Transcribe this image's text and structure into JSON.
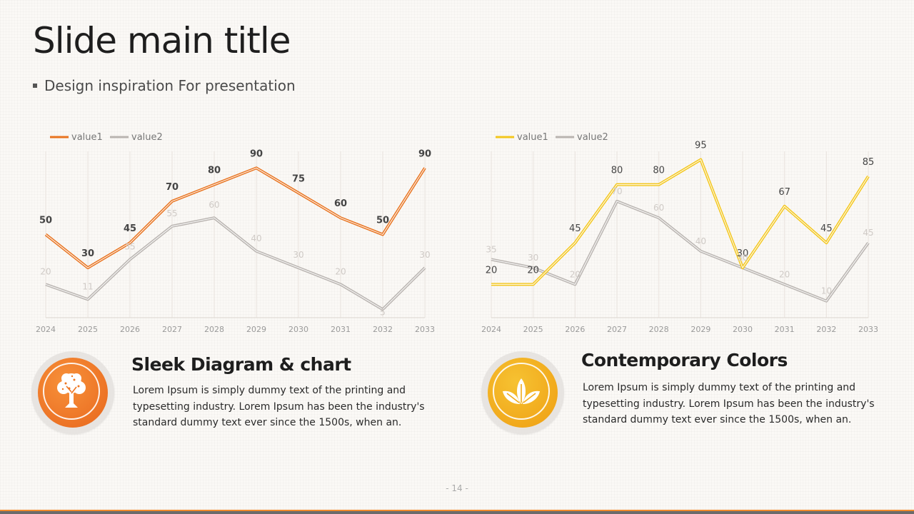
{
  "slide": {
    "title": "Slide main title",
    "subtitle": "Design inspiration For presentation",
    "page_number": "- 14 -"
  },
  "features": [
    {
      "heading": "Sleek Diagram & chart",
      "body": "Lorem Ipsum is simply dummy text of the printing and typesetting industry. Lorem Ipsum has been the industry's standard dummy text ever since the 1500s, when an.",
      "icon": "tree-icon",
      "color": "#ed6f1f"
    },
    {
      "heading": "Contemporary Colors",
      "body": "Lorem Ipsum is simply dummy text of the printing and typesetting industry. Lorem Ipsum has been the industry's standard dummy text ever since the 1500s, when an.",
      "icon": "leaves-icon",
      "color": "#f2ab1a"
    }
  ],
  "chart_data": [
    {
      "type": "line",
      "categories": [
        "2024",
        "2025",
        "2026",
        "2027",
        "2028",
        "2029",
        "2030",
        "2031",
        "2032",
        "2033"
      ],
      "series": [
        {
          "name": "value1",
          "values": [
            50,
            30,
            45,
            70,
            80,
            90,
            75,
            60,
            50,
            90
          ],
          "color": "#e8731f",
          "label_color": "#444444"
        },
        {
          "name": "value2",
          "values": [
            20,
            11,
            35,
            55,
            60,
            40,
            30,
            20,
            5,
            30
          ],
          "color": "#b9b4b0",
          "label_color": "#cfcac6"
        }
      ],
      "ylim": [
        0,
        100
      ],
      "legend": "top-left",
      "grid": "vertical"
    },
    {
      "type": "line",
      "categories": [
        "2024",
        "2025",
        "2026",
        "2027",
        "2028",
        "2029",
        "2030",
        "2031",
        "2032",
        "2033"
      ],
      "series": [
        {
          "name": "value1",
          "values": [
            20,
            20,
            45,
            80,
            80,
            95,
            30,
            67,
            45,
            85
          ],
          "color": "#f3c61c",
          "label_color": "#444444"
        },
        {
          "name": "value2",
          "values": [
            35,
            30,
            20,
            70,
            60,
            40,
            30,
            20,
            10,
            45
          ],
          "color": "#b9b4b0",
          "label_color": "#cfcac6"
        }
      ],
      "ylim": [
        0,
        100
      ],
      "legend": "top-left",
      "grid": "vertical"
    }
  ]
}
